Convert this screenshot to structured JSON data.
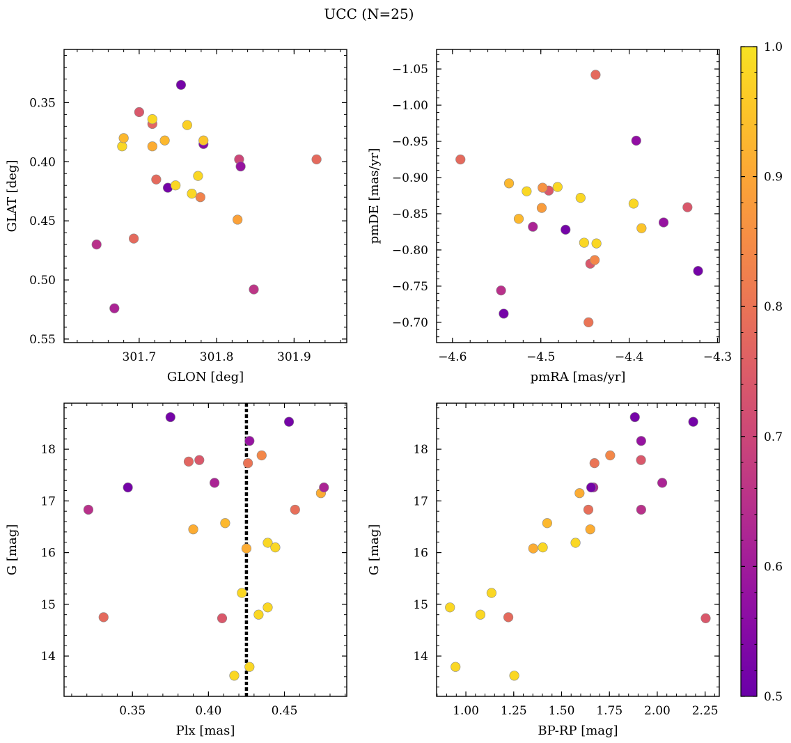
{
  "figure_title": "UCC (N=25)",
  "colorbar": {
    "min": 0.5,
    "max": 1.0,
    "colormap": "plasma",
    "ticks": [
      "0.5",
      "0.6",
      "0.7",
      "0.8",
      "0.9",
      "1.0"
    ]
  },
  "marker_edge_color": "#8a8a8a",
  "chart_data": [
    {
      "type": "scatter",
      "id": "glon-glat",
      "xlabel": "GLON [deg]",
      "ylabel": "GLAT [deg]",
      "xlim": [
        301.603,
        301.968
      ],
      "ylim": [
        0.305,
        0.553
      ],
      "xticks": [
        "301.7",
        "301.8",
        "301.9"
      ],
      "yticks": [
        "0.35",
        "0.40",
        "0.45",
        "0.50",
        "0.55"
      ],
      "x": [
        301.668,
        301.645,
        301.693,
        301.848,
        301.827,
        301.737,
        301.722,
        301.779,
        301.747,
        301.768,
        301.776,
        301.783,
        301.829,
        301.831,
        301.929,
        301.678,
        301.68,
        301.717,
        301.733,
        301.783,
        301.762,
        301.717,
        301.717,
        301.7,
        301.754
      ],
      "y": [
        0.524,
        0.47,
        0.465,
        0.508,
        0.449,
        0.422,
        0.415,
        0.43,
        0.42,
        0.427,
        0.412,
        0.385,
        0.398,
        0.404,
        0.398,
        0.387,
        0.38,
        0.387,
        0.382,
        0.382,
        0.369,
        0.368,
        0.364,
        0.358,
        0.335
      ]
    },
    {
      "type": "scatter",
      "id": "pmra-pmde",
      "xlabel": "pmRA [mas/yr]",
      "ylabel": "pmDE [mas/yr]",
      "xlim": [
        -4.618,
        -4.298
      ],
      "ylim": [
        -1.077,
        -0.672
      ],
      "xticks": [
        "−4.6",
        "−4.5",
        "−4.4",
        "−4.3"
      ],
      "yticks": [
        "−0.70",
        "−0.75",
        "−0.80",
        "−0.85",
        "−0.90",
        "−0.95",
        "−1.00",
        "−1.05"
      ],
      "x": [
        -4.542,
        -4.545,
        -4.446,
        -4.444,
        -4.439,
        -4.322,
        -4.451,
        -4.437,
        -4.472,
        -4.509,
        -4.525,
        -4.361,
        -4.386,
        -4.499,
        -4.334,
        -4.395,
        -4.455,
        -4.516,
        -4.491,
        -4.481,
        -4.536,
        -4.498,
        -4.591,
        -4.392,
        -4.438
      ],
      "y": [
        -0.712,
        -0.744,
        -0.7,
        -0.781,
        -0.786,
        -0.771,
        -0.81,
        -0.809,
        -0.828,
        -0.832,
        -0.843,
        -0.838,
        -0.83,
        -0.858,
        -0.859,
        -0.864,
        -0.872,
        -0.881,
        -0.882,
        -0.887,
        -0.892,
        -0.886,
        -0.925,
        -0.951,
        -1.042
      ]
    },
    {
      "type": "scatter",
      "id": "plx-g",
      "xlabel": "Plx [mas]",
      "ylabel": "G [mag]",
      "xlim": [
        0.305,
        0.491
      ],
      "ylim": [
        18.89,
        13.22
      ],
      "y_inverted": true,
      "vline": {
        "x": 0.425,
        "style": "dotted",
        "color": "#000000"
      },
      "xticks": [
        "0.35",
        "0.40",
        "0.45"
      ],
      "yticks": [
        "14",
        "15",
        "16",
        "17",
        "18"
      ],
      "x": [
        0.417,
        0.427,
        0.331,
        0.409,
        0.433,
        0.439,
        0.422,
        0.425,
        0.439,
        0.444,
        0.39,
        0.411,
        0.321,
        0.457,
        0.474,
        0.476,
        0.347,
        0.404,
        0.387,
        0.394,
        0.426,
        0.435,
        0.427,
        0.453,
        0.375
      ],
      "y": [
        13.62,
        13.79,
        14.75,
        14.73,
        14.8,
        14.94,
        15.22,
        16.08,
        16.19,
        16.1,
        16.45,
        16.57,
        16.83,
        16.83,
        17.15,
        17.26,
        17.26,
        17.35,
        17.76,
        17.79,
        17.73,
        17.88,
        18.16,
        18.53,
        18.62
      ]
    },
    {
      "type": "scatter",
      "id": "bprp-g",
      "xlabel": "BP-RP [mag]",
      "ylabel": "G [mag]",
      "xlim": [
        0.847,
        2.324
      ],
      "ylim": [
        18.89,
        13.22
      ],
      "y_inverted": true,
      "xticks": [
        "1.00",
        "1.25",
        "1.50",
        "1.75",
        "2.00",
        "2.25"
      ],
      "yticks": [
        "14",
        "15",
        "16",
        "17",
        "18"
      ],
      "x": [
        1.253,
        0.946,
        1.222,
        2.253,
        1.076,
        0.917,
        1.134,
        1.352,
        1.573,
        1.402,
        1.65,
        1.425,
        1.916,
        1.64,
        1.594,
        1.666,
        1.655,
        2.026,
        1.915,
        1.672,
        1.754,
        1.916,
        2.188,
        1.883
      ],
      "y": [
        13.62,
        13.79,
        14.75,
        14.73,
        14.8,
        14.94,
        15.22,
        16.08,
        16.19,
        16.1,
        16.45,
        16.57,
        16.83,
        16.83,
        17.15,
        17.26,
        17.26,
        17.35,
        17.79,
        17.73,
        17.88,
        18.16,
        18.53,
        18.62
      ]
    }
  ],
  "color_values": {
    "glon-glat": [
      0.62,
      0.65,
      0.78,
      0.66,
      0.89,
      0.52,
      0.78,
      0.83,
      0.98,
      0.98,
      0.98,
      0.55,
      0.7,
      0.58,
      0.78,
      0.98,
      0.93,
      0.91,
      0.93,
      0.95,
      0.97,
      0.77,
      0.98,
      0.74,
      0.52
    ],
    "pmra-pmde": [
      0.52,
      0.65,
      0.8,
      0.74,
      0.84,
      0.52,
      0.98,
      0.98,
      0.52,
      0.62,
      0.93,
      0.58,
      0.95,
      0.88,
      0.74,
      0.98,
      0.98,
      0.98,
      0.74,
      0.98,
      0.93,
      0.86,
      0.78,
      0.57,
      0.78
    ],
    "plx-g": [
      0.98,
      0.98,
      0.78,
      0.74,
      0.98,
      0.98,
      0.98,
      0.91,
      0.98,
      0.98,
      0.91,
      0.93,
      0.65,
      0.79,
      0.91,
      0.62,
      0.52,
      0.62,
      0.77,
      0.74,
      0.8,
      0.84,
      0.58,
      0.52,
      0.52
    ],
    "bprp-g": [
      0.98,
      0.98,
      0.78,
      0.74,
      0.98,
      0.98,
      0.98,
      0.91,
      0.98,
      0.98,
      0.91,
      0.93,
      0.65,
      0.79,
      0.91,
      0.62,
      0.52,
      0.62,
      0.74,
      0.8,
      0.84,
      0.58,
      0.52,
      0.52
    ]
  }
}
